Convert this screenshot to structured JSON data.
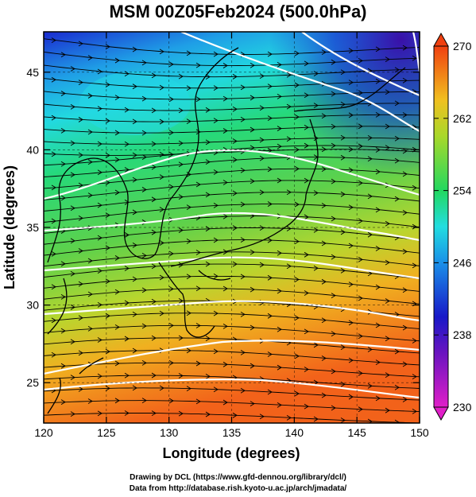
{
  "title": "MSM 00Z05Feb2024 (500.0hPa)",
  "xaxis": {
    "label": "Longitude (degrees)",
    "range": [
      120,
      150
    ],
    "ticks": [
      "120",
      "125",
      "130",
      "135",
      "140",
      "145",
      "150"
    ]
  },
  "yaxis": {
    "label": "Latitude  (degrees)",
    "range": [
      22.4,
      47.6
    ],
    "ticks": [
      "25",
      "30",
      "35",
      "40",
      "45"
    ]
  },
  "colorbar": {
    "range": [
      230,
      270
    ],
    "ticks": [
      "230",
      "238",
      "246",
      "254",
      "262",
      "270"
    ]
  },
  "footer": {
    "line1": "Drawing by DCL (https://www.gfd-dennou.org/library/dcl/)",
    "line2": "Data from http://database.rish.kyoto-u.ac.jp/arch/jmadata/"
  },
  "colors": {
    "cold": "#2020c0",
    "mid": "#2ee08a",
    "warm": "#f06a10",
    "streamline": "#000000",
    "contour": "#ffffff"
  }
}
